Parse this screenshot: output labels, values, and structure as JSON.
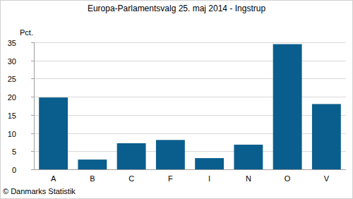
{
  "chart_data": {
    "type": "bar",
    "title": "Europa-Parlamentsvalg 25. maj 2014 - Ingstrup",
    "y_label": "Pct.",
    "source": "© Danmarks Statistik",
    "categories": [
      "A",
      "B",
      "C",
      "F",
      "I",
      "N",
      "O",
      "V"
    ],
    "values": [
      19.8,
      2.7,
      7.2,
      8.1,
      3.1,
      6.8,
      34.5,
      18.0
    ],
    "color": "#0a5e8d",
    "ylim": [
      0,
      35
    ],
    "yticks": [
      0,
      5,
      10,
      15,
      20,
      25,
      30,
      35
    ],
    "grid": true
  }
}
